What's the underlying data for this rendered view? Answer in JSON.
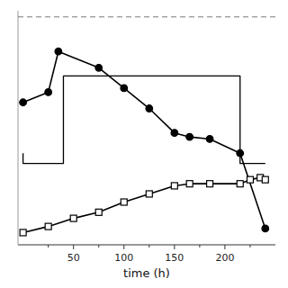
{
  "chart_data": {
    "type": "line",
    "xlabel": "time (h)",
    "xlim": [
      -5,
      250
    ],
    "ylim": [
      -0.5,
      11.0
    ],
    "xticks": [
      50,
      100,
      150,
      200
    ],
    "x_minor_ticks": [
      25,
      75,
      125,
      175,
      225
    ],
    "tick_labels": "x",
    "grid": false,
    "series": [
      {
        "x": [
          0,
          0,
          40,
          40,
          215,
          215,
          240
        ],
        "values": [
          4.0,
          3.5,
          3.5,
          7.8,
          7.8,
          3.5,
          3.5
        ],
        "color": "#000000",
        "line_style": "solid"
      },
      {
        "x": [
          0,
          25,
          35,
          75,
          100,
          125,
          150,
          165,
          185,
          215,
          240
        ],
        "values": [
          6.5,
          7.0,
          9.0,
          8.2,
          7.2,
          6.2,
          5.0,
          4.8,
          4.7,
          4.0,
          0.3
        ],
        "color": "#000000",
        "line_style": "solid",
        "marker": "circle"
      },
      {
        "x": [
          0,
          25,
          50,
          75,
          100,
          125,
          150,
          165,
          185,
          215,
          225,
          235,
          240
        ],
        "values": [
          0.1,
          0.4,
          0.8,
          1.1,
          1.6,
          2.0,
          2.4,
          2.5,
          2.5,
          2.5,
          2.7,
          2.8,
          2.7
        ],
        "color": "#000000",
        "line_style": "solid",
        "marker": "open-square"
      }
    ],
    "reference_lines": [
      {
        "y": 10.7,
        "line_style": "dashed"
      }
    ]
  }
}
